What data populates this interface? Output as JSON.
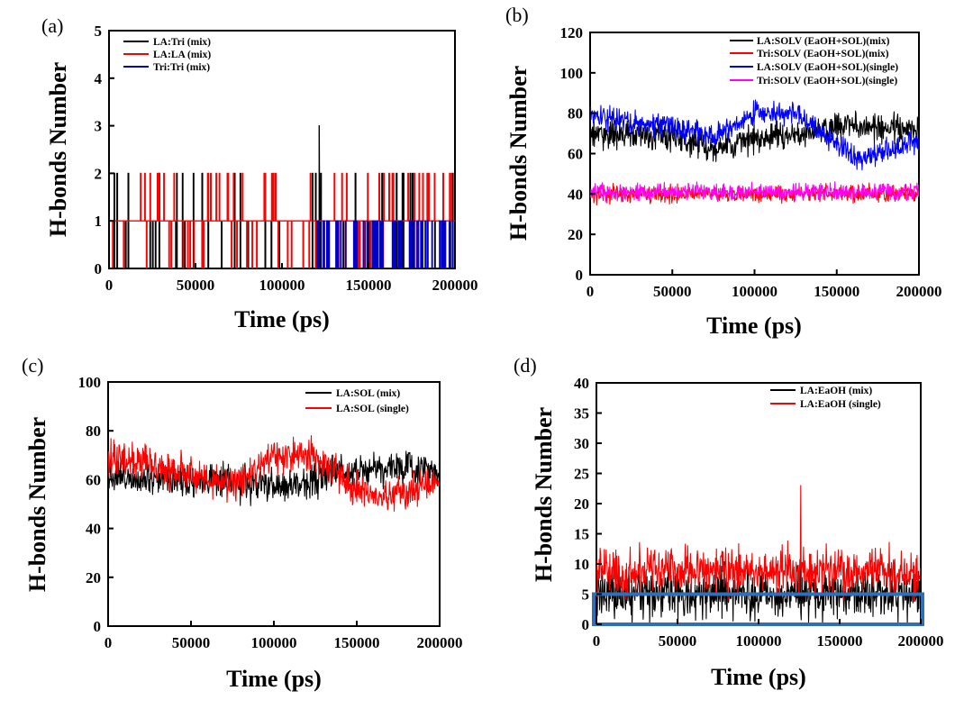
{
  "chart_data": [
    {
      "panel": "(a)",
      "type": "line",
      "xlabel": "Time (ps)",
      "ylabel": "H-bonds Number",
      "xlim": [
        0,
        200000
      ],
      "ylim": [
        0,
        5
      ],
      "xticks": [
        "0",
        "50000",
        "100000",
        "150000",
        "200000"
      ],
      "yticks": [
        "0",
        "1",
        "2",
        "3",
        "4",
        "5"
      ],
      "legend_position": "top-left",
      "series": [
        {
          "name": "LA:Tri (mix)",
          "color": "#000000",
          "style": "discrete",
          "base": 0,
          "levels": [
            1,
            2
          ],
          "spike": {
            "x": 121500,
            "y": 3
          }
        },
        {
          "name": "LA:LA (mix)",
          "color": "#ff0000",
          "style": "discrete",
          "base": 1,
          "levels": [
            0,
            2
          ]
        },
        {
          "name": "Tri:Tri (mix)",
          "color": "#0000cc",
          "style": "discrete",
          "base": 0,
          "levels": [
            1
          ],
          "range": [
            120000,
            200000
          ]
        }
      ]
    },
    {
      "panel": "(b)",
      "type": "line",
      "xlabel": "Time (ps)",
      "ylabel": "H-bonds Number",
      "xlim": [
        0,
        200000
      ],
      "ylim": [
        0,
        120
      ],
      "xticks": [
        "0",
        "50000",
        "100000",
        "150000",
        "200000"
      ],
      "yticks": [
        "0",
        "20",
        "40",
        "60",
        "80",
        "100",
        "120"
      ],
      "legend_position": "top-right",
      "series": [
        {
          "name": "LA:SOLV (EaOH+SOL)(mix)",
          "color": "#000000",
          "noise": 6,
          "trend": [
            [
              0,
              70
            ],
            [
              50000,
              68
            ],
            [
              75000,
              63
            ],
            [
              100000,
              67
            ],
            [
              130000,
              70
            ],
            [
              150000,
              74
            ],
            [
              180000,
              73
            ],
            [
              200000,
              71
            ]
          ]
        },
        {
          "name": "Tri:SOLV (EaOH+SOL)(mix)",
          "color": "#ff0000",
          "noise": 3.5,
          "trend": [
            [
              0,
              40
            ],
            [
              200000,
              40
            ]
          ]
        },
        {
          "name": "LA:SOLV (EaOH+SOL)(single)",
          "color": "#0000ff",
          "noise": 5,
          "trend": [
            [
              0,
              79
            ],
            [
              25000,
              75
            ],
            [
              50000,
              74
            ],
            [
              75000,
              68
            ],
            [
              100000,
              80
            ],
            [
              125000,
              80
            ],
            [
              145000,
              68
            ],
            [
              165000,
              57
            ],
            [
              180000,
              62
            ],
            [
              200000,
              66
            ]
          ]
        },
        {
          "name": "Tri:SOLV (EaOH+SOL)(single)",
          "color": "#ff00ff",
          "noise": 3.5,
          "trend": [
            [
              0,
              41
            ],
            [
              200000,
              41
            ]
          ]
        }
      ]
    },
    {
      "panel": "(c)",
      "type": "line",
      "xlabel": "Time (ps)",
      "ylabel": "H-bonds Number",
      "xlim": [
        0,
        200000
      ],
      "ylim": [
        0,
        100
      ],
      "xticks": [
        "0",
        "50000",
        "100000",
        "150000",
        "200000"
      ],
      "yticks": [
        "0",
        "20",
        "40",
        "60",
        "80",
        "100"
      ],
      "legend_position": "top-right",
      "series": [
        {
          "name": "LA:SOL (mix)",
          "color": "#000000",
          "noise": 6,
          "trend": [
            [
              0,
              62
            ],
            [
              50000,
              60
            ],
            [
              80000,
              58
            ],
            [
              110000,
              57
            ],
            [
              140000,
              64
            ],
            [
              170000,
              65
            ],
            [
              200000,
              64
            ]
          ]
        },
        {
          "name": "LA:SOL (single)",
          "color": "#ff0000",
          "noise": 6,
          "trend": [
            [
              0,
              70
            ],
            [
              25000,
              66
            ],
            [
              50000,
              62
            ],
            [
              75000,
              58
            ],
            [
              100000,
              70
            ],
            [
              125000,
              69
            ],
            [
              145000,
              58
            ],
            [
              165000,
              52
            ],
            [
              185000,
              55
            ],
            [
              200000,
              60
            ]
          ]
        }
      ]
    },
    {
      "panel": "(d)",
      "type": "line",
      "xlabel": "Time (ps)",
      "ylabel": "H-bonds Number",
      "xlim": [
        0,
        200000
      ],
      "ylim": [
        0,
        40
      ],
      "xticks": [
        "0",
        "50000",
        "100000",
        "150000",
        "200000"
      ],
      "yticks": [
        "0",
        "5",
        "10",
        "15",
        "20",
        "25",
        "30",
        "35",
        "40"
      ],
      "legend_position": "top-right",
      "highlight_box": {
        "y_range": [
          0,
          5
        ],
        "color": "#2e6fb5"
      },
      "series": [
        {
          "name": "LA:EaOH (mix)",
          "color": "#000000",
          "noise": 3.5,
          "trend": [
            [
              0,
              5
            ],
            [
              200000,
              5
            ]
          ]
        },
        {
          "name": "LA:EaOH (single)",
          "color": "#ff0000",
          "noise": 3.2,
          "trend": [
            [
              0,
              9
            ],
            [
              200000,
              8.5
            ]
          ],
          "spike": {
            "x": 126000,
            "y": 23
          }
        }
      ]
    }
  ]
}
